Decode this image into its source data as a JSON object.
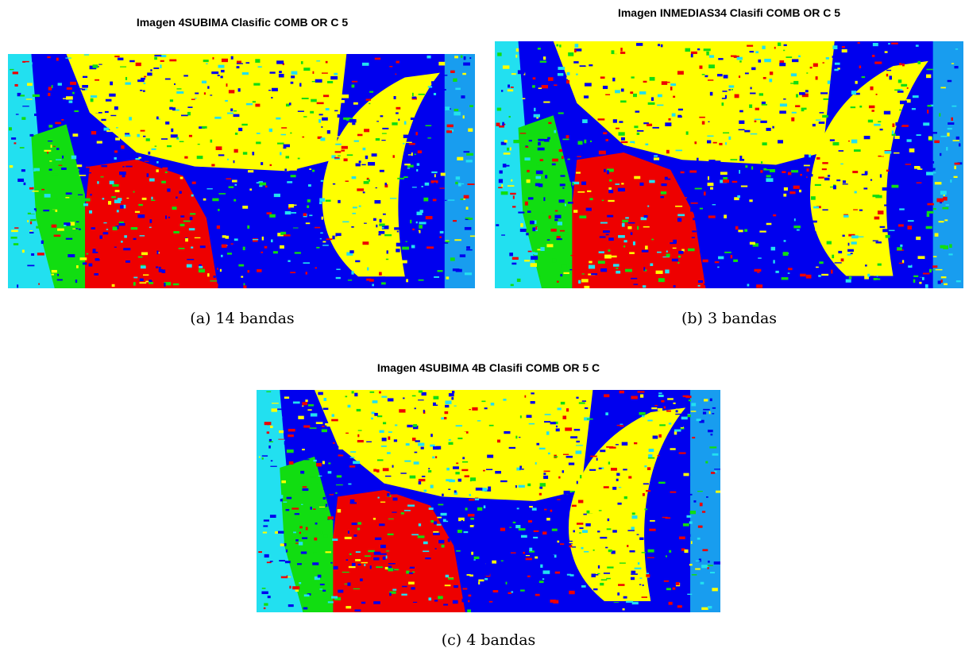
{
  "panels": [
    {
      "title": "Imagen 4SUBIMA Clasific COMB OR C 5",
      "caption": "(a) 14 bandas"
    },
    {
      "title": "Imagen INMEDIAS34 Clasifi COMB OR C 5",
      "caption": "(b) 3 bandas"
    },
    {
      "title": "Imagen 4SUBIMA 4B Clasifi COMB OR 5 C",
      "caption": "(c) 4 bandas"
    }
  ]
}
